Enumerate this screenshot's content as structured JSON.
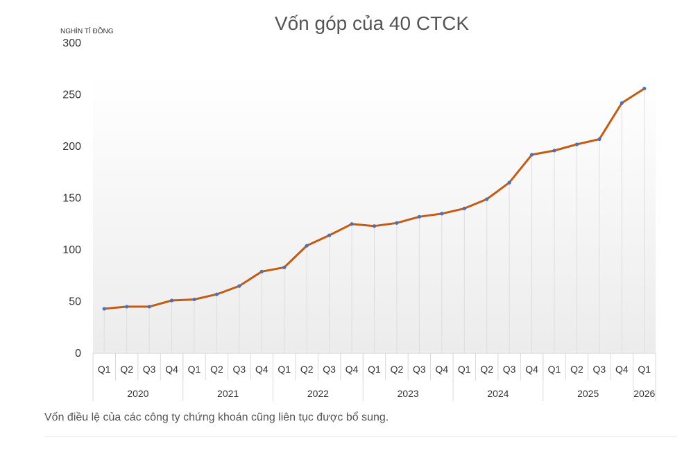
{
  "chart_data": {
    "type": "line",
    "title": "Vốn góp của 40 CTCK",
    "unit_label": "NGHÌN TỈ ĐỒNG",
    "ylim": [
      0,
      300
    ],
    "yticks": [
      "0",
      "50",
      "100",
      "150",
      "200",
      "250",
      "300"
    ],
    "ytick_values": [
      0,
      50,
      100,
      150,
      200,
      250,
      300
    ],
    "grid": false,
    "line_color": "#c55a11",
    "marker_color": "#4472c4",
    "categories": [
      "Q1",
      "Q2",
      "Q3",
      "Q4",
      "Q1",
      "Q2",
      "Q3",
      "Q4",
      "Q1",
      "Q2",
      "Q3",
      "Q4",
      "Q1",
      "Q2",
      "Q3",
      "Q4",
      "Q1",
      "Q2",
      "Q3",
      "Q4",
      "Q1",
      "Q2",
      "Q3",
      "Q4",
      "Q1"
    ],
    "year_groups": [
      {
        "label": "2020",
        "count": 4
      },
      {
        "label": "2021",
        "count": 4
      },
      {
        "label": "2022",
        "count": 4
      },
      {
        "label": "2023",
        "count": 4
      },
      {
        "label": "2024",
        "count": 4
      },
      {
        "label": "2025",
        "count": 4
      },
      {
        "label": "2026",
        "count": 1
      }
    ],
    "series": [
      {
        "values": [
          43,
          45,
          45,
          51,
          52,
          57,
          65,
          79,
          83,
          104,
          114,
          125,
          123,
          126,
          132,
          135,
          140,
          149,
          165,
          192,
          196,
          202,
          207,
          242,
          256
        ]
      }
    ]
  },
  "caption": "Vốn điều lệ của các công ty chứng khoán cũng liên tục được bổ sung."
}
